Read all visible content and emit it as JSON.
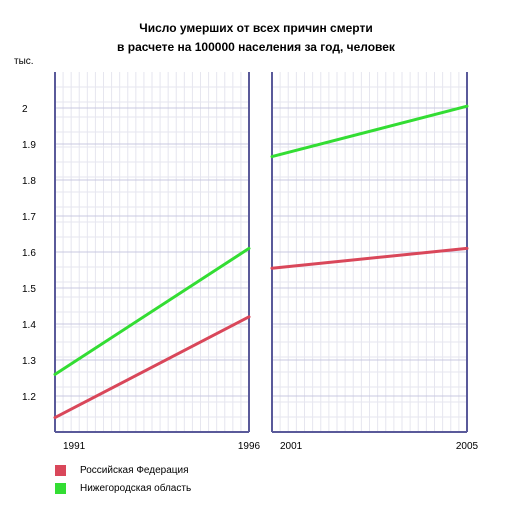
{
  "chart_data": {
    "type": "line",
    "title_line1": "Число умерших от всех причин смерти",
    "title_line2": "в расчете на 100000 населения за год, человек",
    "yunit": "тыс.",
    "ylim": [
      1.1,
      2.1
    ],
    "yticks": [
      1.2,
      1.3,
      1.4,
      1.5,
      1.6,
      1.7,
      1.8,
      1.9,
      2
    ],
    "ytick_labels": [
      "1.2",
      "1.3",
      "1.4",
      "1.5",
      "1.6",
      "1.7",
      "1.8",
      "1.9",
      "2"
    ],
    "grid": true,
    "legend_position": "bottom-left",
    "panels": [
      {
        "xlim": [
          1991,
          1996
        ],
        "xtick_labels": [
          "1991",
          "1996"
        ]
      },
      {
        "xlim": [
          2001,
          2005
        ],
        "xtick_labels": [
          "2001",
          "2005"
        ]
      }
    ],
    "series": [
      {
        "name": "Российская Федерация",
        "color": "#d9475a",
        "segments": [
          {
            "panel": 0,
            "x": [
              1991,
              1996
            ],
            "y": [
              1.14,
              1.42
            ]
          },
          {
            "panel": 1,
            "x": [
              2001,
              2005
            ],
            "y": [
              1.555,
              1.61
            ]
          }
        ]
      },
      {
        "name": "Нижегородская область",
        "color": "#33dd33",
        "segments": [
          {
            "panel": 0,
            "x": [
              1991,
              1996
            ],
            "y": [
              1.26,
              1.61
            ]
          },
          {
            "panel": 1,
            "x": [
              2001,
              2005
            ],
            "y": [
              1.865,
              2.005
            ]
          }
        ]
      }
    ]
  }
}
